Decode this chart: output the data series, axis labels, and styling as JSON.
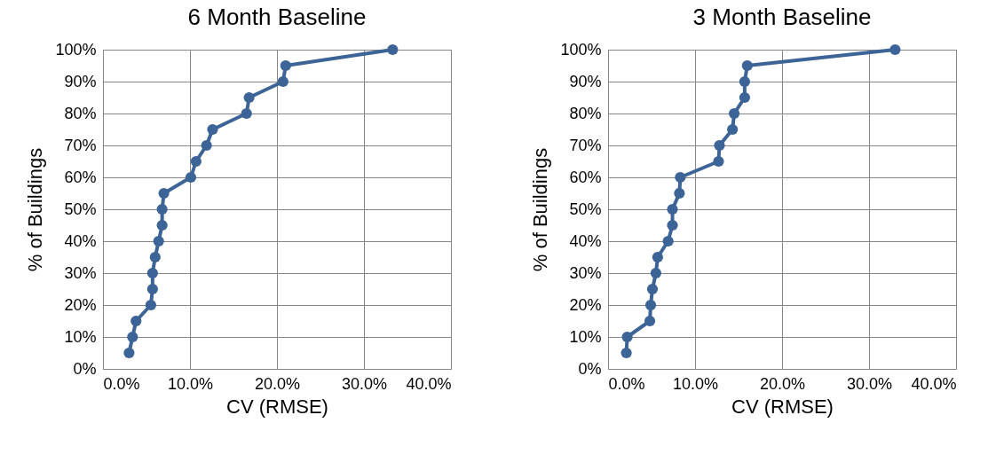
{
  "chart_data": [
    {
      "type": "line",
      "title": "6 Month Baseline",
      "xlabel": "CV (RMSE)",
      "ylabel": "% of Buildings",
      "marker": "circle",
      "line_style": "solid",
      "grid": true,
      "legend": false,
      "xlim": [
        0,
        40
      ],
      "xticks": [
        {
          "value": 0,
          "label": "0.0%"
        },
        {
          "value": 10,
          "label": "10.0%"
        },
        {
          "value": 20,
          "label": "20.0%"
        },
        {
          "value": 30,
          "label": "30.0%"
        },
        {
          "value": 40,
          "label": "40.0%"
        }
      ],
      "ylim": [
        0,
        100
      ],
      "yticks": [
        {
          "value": 0,
          "label": "0%"
        },
        {
          "value": 10,
          "label": "10%"
        },
        {
          "value": 20,
          "label": "20%"
        },
        {
          "value": 30,
          "label": "30%"
        },
        {
          "value": 40,
          "label": "40%"
        },
        {
          "value": 50,
          "label": "50%"
        },
        {
          "value": 60,
          "label": "60%"
        },
        {
          "value": 70,
          "label": "70%"
        },
        {
          "value": 80,
          "label": "80%"
        },
        {
          "value": 90,
          "label": "90%"
        },
        {
          "value": 100,
          "label": "100%"
        }
      ],
      "series": [
        {
          "color": "#3d6496",
          "x": [
            3.0,
            3.4,
            3.8,
            5.5,
            5.7,
            5.7,
            6.0,
            6.4,
            6.8,
            6.8,
            7.0,
            10.1,
            10.7,
            11.9,
            12.6,
            16.5,
            16.8,
            20.7,
            21.0,
            33.3
          ],
          "values": [
            5,
            10,
            15,
            20,
            25,
            30,
            35,
            40,
            45,
            50,
            55,
            60,
            65,
            70,
            75,
            80,
            85,
            90,
            95,
            100
          ]
        }
      ]
    },
    {
      "type": "line",
      "title": "3 Month Baseline",
      "xlabel": "CV (RMSE)",
      "ylabel": "% of Buildings",
      "marker": "circle",
      "line_style": "solid",
      "grid": true,
      "legend": false,
      "xlim": [
        0,
        40
      ],
      "xticks": [
        {
          "value": 0,
          "label": "0.0%"
        },
        {
          "value": 10,
          "label": "10.0%"
        },
        {
          "value": 20,
          "label": "20.0%"
        },
        {
          "value": 30,
          "label": "30.0%"
        },
        {
          "value": 40,
          "label": "40.0%"
        }
      ],
      "ylim": [
        0,
        100
      ],
      "yticks": [
        {
          "value": 0,
          "label": "0%"
        },
        {
          "value": 10,
          "label": "10%"
        },
        {
          "value": 20,
          "label": "20%"
        },
        {
          "value": 30,
          "label": "30%"
        },
        {
          "value": 40,
          "label": "40%"
        },
        {
          "value": 50,
          "label": "50%"
        },
        {
          "value": 60,
          "label": "60%"
        },
        {
          "value": 70,
          "label": "70%"
        },
        {
          "value": 80,
          "label": "80%"
        },
        {
          "value": 90,
          "label": "90%"
        },
        {
          "value": 100,
          "label": "100%"
        }
      ],
      "series": [
        {
          "color": "#3d6496",
          "x": [
            2.1,
            2.2,
            4.8,
            4.9,
            5.1,
            5.5,
            5.7,
            6.9,
            7.4,
            7.4,
            8.2,
            8.3,
            12.7,
            12.8,
            14.3,
            14.5,
            15.7,
            15.7,
            16.0,
            33.0
          ],
          "values": [
            5,
            10,
            15,
            20,
            25,
            30,
            35,
            40,
            45,
            50,
            55,
            60,
            65,
            70,
            75,
            80,
            85,
            90,
            95,
            100
          ]
        }
      ]
    }
  ]
}
